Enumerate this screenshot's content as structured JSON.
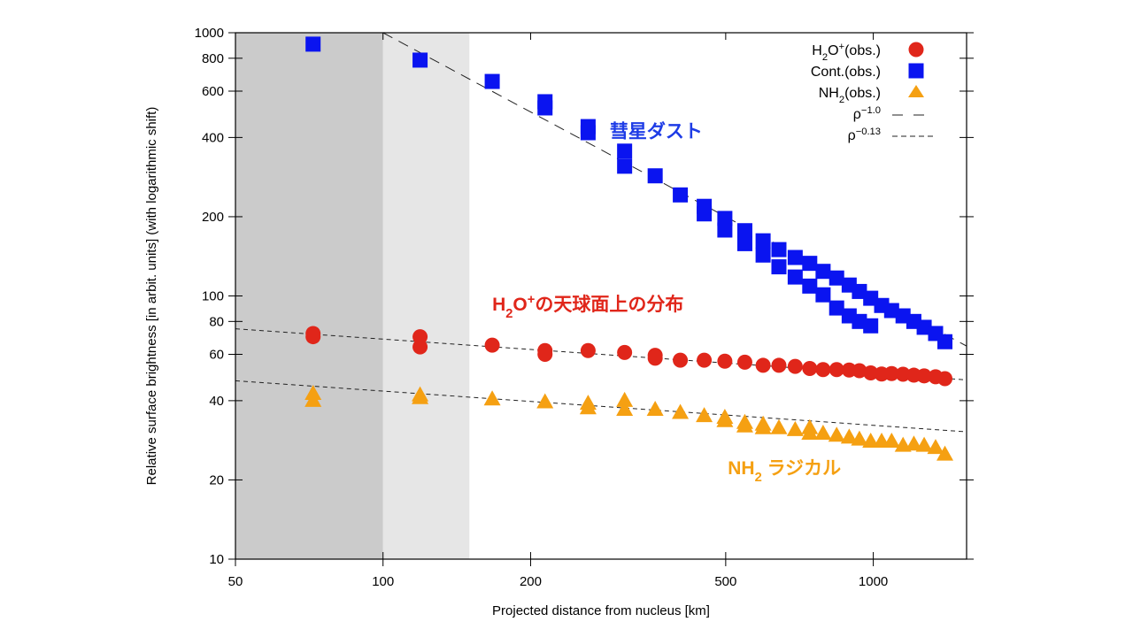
{
  "chart_data": {
    "type": "scatter",
    "xscale": "log",
    "yscale": "log",
    "xlim": [
      50,
      1550
    ],
    "ylim": [
      10,
      1000
    ],
    "xlabel": "Projected distance from nucleus [km]",
    "ylabel": "Relative surface brightness [in arbit. units] (with logarithmic shift)",
    "xticks": [
      50,
      100,
      200,
      500,
      1000
    ],
    "yticks": [
      10,
      20,
      40,
      60,
      80,
      100,
      200,
      400,
      600,
      800,
      1000
    ],
    "grid": false,
    "legend_position": "top-right",
    "shaded_regions": [
      {
        "from": 50,
        "to": 100,
        "color": "#cbcbcb"
      },
      {
        "from": 100,
        "to": 150,
        "color": "#e6e6e6"
      }
    ],
    "series": [
      {
        "name": "H2O+(obs.)",
        "legend_parts": [
          {
            "t": "H",
            "s": ""
          },
          {
            "t": "2",
            "s": "sub"
          },
          {
            "t": "O",
            "s": ""
          },
          {
            "t": "+",
            "s": "sup"
          },
          {
            "t": "(obs.)",
            "s": ""
          }
        ],
        "marker": "circle",
        "color": "#e0261a",
        "points": [
          [
            72,
            72
          ],
          [
            72,
            70
          ],
          [
            119,
            70
          ],
          [
            119,
            64
          ],
          [
            167,
            65
          ],
          [
            214,
            62
          ],
          [
            214,
            60
          ],
          [
            262,
            62
          ],
          [
            311,
            61
          ],
          [
            359,
            59.5
          ],
          [
            359,
            58
          ],
          [
            404,
            57
          ],
          [
            452,
            57
          ],
          [
            498,
            56.5
          ],
          [
            547,
            56
          ],
          [
            596,
            54.5
          ],
          [
            642,
            54.5
          ],
          [
            693,
            54
          ],
          [
            742,
            53
          ],
          [
            790,
            52.5
          ],
          [
            842,
            52.5
          ],
          [
            893,
            52.3
          ],
          [
            937,
            52
          ],
          [
            988,
            51
          ],
          [
            1040,
            50.5
          ],
          [
            1090,
            50.7
          ],
          [
            1150,
            50.4
          ],
          [
            1210,
            50
          ],
          [
            1270,
            49.7
          ],
          [
            1340,
            49.3
          ],
          [
            1400,
            48.5
          ]
        ]
      },
      {
        "name": "Cont.(obs.)",
        "legend_parts": [
          {
            "t": "Cont.(obs.)",
            "s": ""
          }
        ],
        "marker": "square",
        "color": "#0a14f0",
        "points": [
          [
            72,
            905
          ],
          [
            119,
            787
          ],
          [
            167,
            653
          ],
          [
            214,
            547
          ],
          [
            214,
            518
          ],
          [
            262,
            440
          ],
          [
            262,
            417
          ],
          [
            311,
            355
          ],
          [
            311,
            311
          ],
          [
            359,
            286
          ],
          [
            404,
            242
          ],
          [
            452,
            219
          ],
          [
            452,
            205
          ],
          [
            498,
            197
          ],
          [
            498,
            178
          ],
          [
            547,
            177
          ],
          [
            547,
            158
          ],
          [
            596,
            162
          ],
          [
            596,
            143
          ],
          [
            642,
            150
          ],
          [
            642,
            129
          ],
          [
            693,
            140
          ],
          [
            693,
            118
          ],
          [
            742,
            133
          ],
          [
            742,
            109
          ],
          [
            790,
            124
          ],
          [
            790,
            101
          ],
          [
            842,
            117
          ],
          [
            842,
            90
          ],
          [
            893,
            110
          ],
          [
            893,
            84
          ],
          [
            937,
            104
          ],
          [
            937,
            80
          ],
          [
            988,
            98
          ],
          [
            988,
            77
          ],
          [
            1040,
            92
          ],
          [
            1090,
            88
          ],
          [
            1150,
            84
          ],
          [
            1210,
            80
          ],
          [
            1270,
            76
          ],
          [
            1340,
            72
          ],
          [
            1400,
            67
          ]
        ]
      },
      {
        "name": "NH2(obs.)",
        "legend_parts": [
          {
            "t": "NH",
            "s": ""
          },
          {
            "t": "2",
            "s": "sub"
          },
          {
            "t": "(obs.)",
            "s": ""
          }
        ],
        "marker": "triangle",
        "color": "#f5a012",
        "points": [
          [
            72,
            42.5
          ],
          [
            72,
            40
          ],
          [
            119,
            42
          ],
          [
            119,
            41
          ],
          [
            167,
            40.5
          ],
          [
            214,
            39.5
          ],
          [
            262,
            39
          ],
          [
            262,
            37.5
          ],
          [
            311,
            40
          ],
          [
            311,
            37
          ],
          [
            359,
            37
          ],
          [
            404,
            36
          ],
          [
            452,
            35
          ],
          [
            498,
            34.5
          ],
          [
            498,
            33.5
          ],
          [
            547,
            33
          ],
          [
            547,
            32
          ],
          [
            596,
            32.5
          ],
          [
            596,
            31.5
          ],
          [
            642,
            31.5
          ],
          [
            693,
            31
          ],
          [
            742,
            31.5
          ],
          [
            742,
            30
          ],
          [
            790,
            30
          ],
          [
            842,
            29.5
          ],
          [
            893,
            29
          ],
          [
            937,
            28.5
          ],
          [
            988,
            28
          ],
          [
            1040,
            28
          ],
          [
            1090,
            28
          ],
          [
            1150,
            27
          ],
          [
            1210,
            27.3
          ],
          [
            1270,
            27
          ],
          [
            1340,
            26.5
          ],
          [
            1400,
            25
          ]
        ]
      }
    ],
    "fit_lines": [
      {
        "name": "rho^-1.0",
        "legend_parts": [
          {
            "t": "ρ",
            "s": ""
          },
          {
            "t": "−1.0",
            "s": "sup"
          }
        ],
        "style": "long-dash",
        "exponent": -1.0,
        "anchor": [
          100,
          1000
        ],
        "x_range": [
          100,
          1550
        ]
      },
      {
        "name": "rho^-0.13",
        "legend_parts": [
          {
            "t": "ρ",
            "s": ""
          },
          {
            "t": "−0.13",
            "s": "sup"
          }
        ],
        "style": "short-dash",
        "exponent": -0.13,
        "anchor": [
          50,
          75
        ],
        "x_range": [
          50,
          1550
        ]
      },
      {
        "name": "rho^-0.13 (NH2)",
        "style": "short-dash",
        "exponent": -0.13,
        "anchor": [
          50,
          47.6
        ],
        "x_range": [
          50,
          1550
        ],
        "in_legend": false
      }
    ],
    "annotations": [
      {
        "parts": [
          {
            "t": "彗星ダスト",
            "s": ""
          }
        ],
        "color": "#1e3ce6",
        "at": [
          290,
          400
        ]
      },
      {
        "parts": [
          {
            "t": "H",
            "s": ""
          },
          {
            "t": "2",
            "s": "sub"
          },
          {
            "t": "O",
            "s": ""
          },
          {
            "t": "+",
            "s": "sup"
          },
          {
            "t": "の天球面上の分布",
            "s": ""
          }
        ],
        "color": "#e0261a",
        "at": [
          167,
          88
        ]
      },
      {
        "parts": [
          {
            "t": "NH",
            "s": ""
          },
          {
            "t": "2",
            "s": "sub"
          },
          {
            "t": " ラジカル",
            "s": ""
          }
        ],
        "color": "#f5a012",
        "at": [
          505,
          21
        ]
      }
    ]
  }
}
